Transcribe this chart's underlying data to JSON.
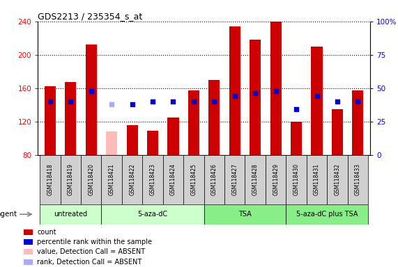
{
  "title": "GDS2213 / 235354_s_at",
  "samples": [
    "GSM118418",
    "GSM118419",
    "GSM118420",
    "GSM118421",
    "GSM118422",
    "GSM118423",
    "GSM118424",
    "GSM118425",
    "GSM118426",
    "GSM118427",
    "GSM118428",
    "GSM118429",
    "GSM118430",
    "GSM118431",
    "GSM118432",
    "GSM118433"
  ],
  "bar_values": [
    162,
    167,
    212,
    108,
    116,
    109,
    125,
    157,
    170,
    234,
    218,
    240,
    120,
    210,
    135,
    157
  ],
  "bar_colors": [
    "#cc0000",
    "#cc0000",
    "#cc0000",
    "#ffbbbb",
    "#cc0000",
    "#cc0000",
    "#cc0000",
    "#cc0000",
    "#cc0000",
    "#cc0000",
    "#cc0000",
    "#cc0000",
    "#cc0000",
    "#cc0000",
    "#cc0000",
    "#cc0000"
  ],
  "rank_values": [
    40,
    40,
    48,
    38,
    38,
    40,
    40,
    40,
    40,
    44,
    46,
    48,
    34,
    44,
    40,
    40
  ],
  "rank_colors": [
    "#0000cc",
    "#0000cc",
    "#0000cc",
    "#aaaaff",
    "#0000cc",
    "#0000cc",
    "#0000cc",
    "#0000cc",
    "#0000cc",
    "#0000cc",
    "#0000cc",
    "#0000cc",
    "#0000cc",
    "#0000cc",
    "#0000cc",
    "#0000cc"
  ],
  "absent_flags": [
    false,
    false,
    false,
    true,
    false,
    false,
    false,
    false,
    false,
    false,
    false,
    false,
    false,
    false,
    false,
    false
  ],
  "group_spans": [
    [
      0,
      2,
      "untreated",
      "#ccffcc"
    ],
    [
      3,
      7,
      "5-aza-dC",
      "#ccffcc"
    ],
    [
      8,
      11,
      "TSA",
      "#88ee88"
    ],
    [
      12,
      15,
      "5-aza-dC plus TSA",
      "#88ee88"
    ]
  ],
  "ylim_left": [
    80,
    240
  ],
  "ylim_right": [
    0,
    100
  ],
  "yticks_left": [
    80,
    120,
    160,
    200,
    240
  ],
  "yticks_right": [
    0,
    25,
    50,
    75,
    100
  ],
  "bar_width": 0.55,
  "rank_square_size": 25,
  "background_color": "#ffffff",
  "legend_items": [
    [
      "#cc0000",
      "count"
    ],
    [
      "#0000cc",
      "percentile rank within the sample"
    ],
    [
      "#ffbbbb",
      "value, Detection Call = ABSENT"
    ],
    [
      "#aaaaff",
      "rank, Detection Call = ABSENT"
    ]
  ]
}
